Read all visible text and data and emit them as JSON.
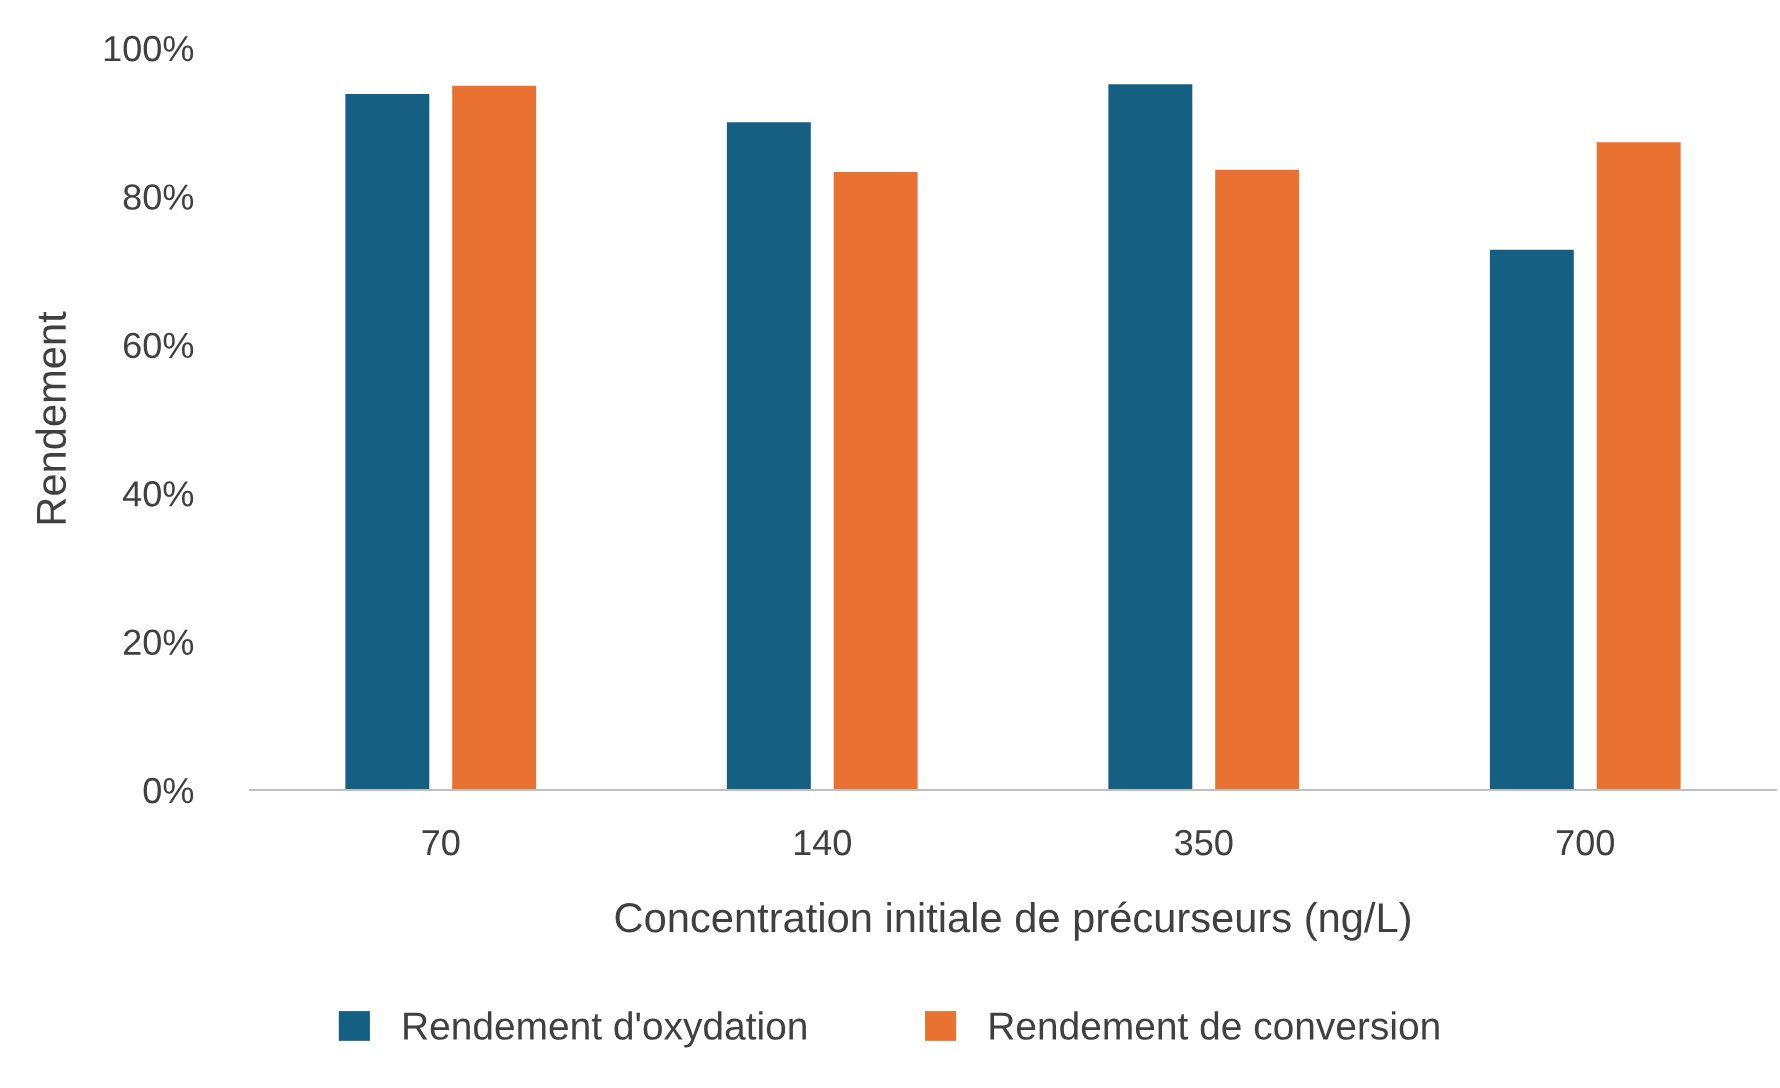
{
  "chart_data": {
    "type": "bar",
    "xlabel": "Concentration initiale de précurseurs (ng/L)",
    "ylabel": "Rendement",
    "categories": [
      "70",
      "140",
      "350",
      "700"
    ],
    "series": [
      {
        "name": "Rendement d'oxydation",
        "color": "#156082",
        "values": [
          93.8,
          90.0,
          95.1,
          72.8
        ]
      },
      {
        "name": "Rendement de conversion",
        "color": "#e97132",
        "values": [
          94.9,
          83.3,
          83.6,
          87.3
        ]
      }
    ],
    "ylim": [
      0,
      100
    ],
    "yticks": [
      {
        "value": 0,
        "label": "0%"
      },
      {
        "value": 20,
        "label": "20%"
      },
      {
        "value": 40,
        "label": "40%"
      },
      {
        "value": 60,
        "label": "60%"
      },
      {
        "value": 80,
        "label": "80%"
      },
      {
        "value": 100,
        "label": "100%"
      }
    ],
    "grid": false,
    "legend": "bottom"
  }
}
